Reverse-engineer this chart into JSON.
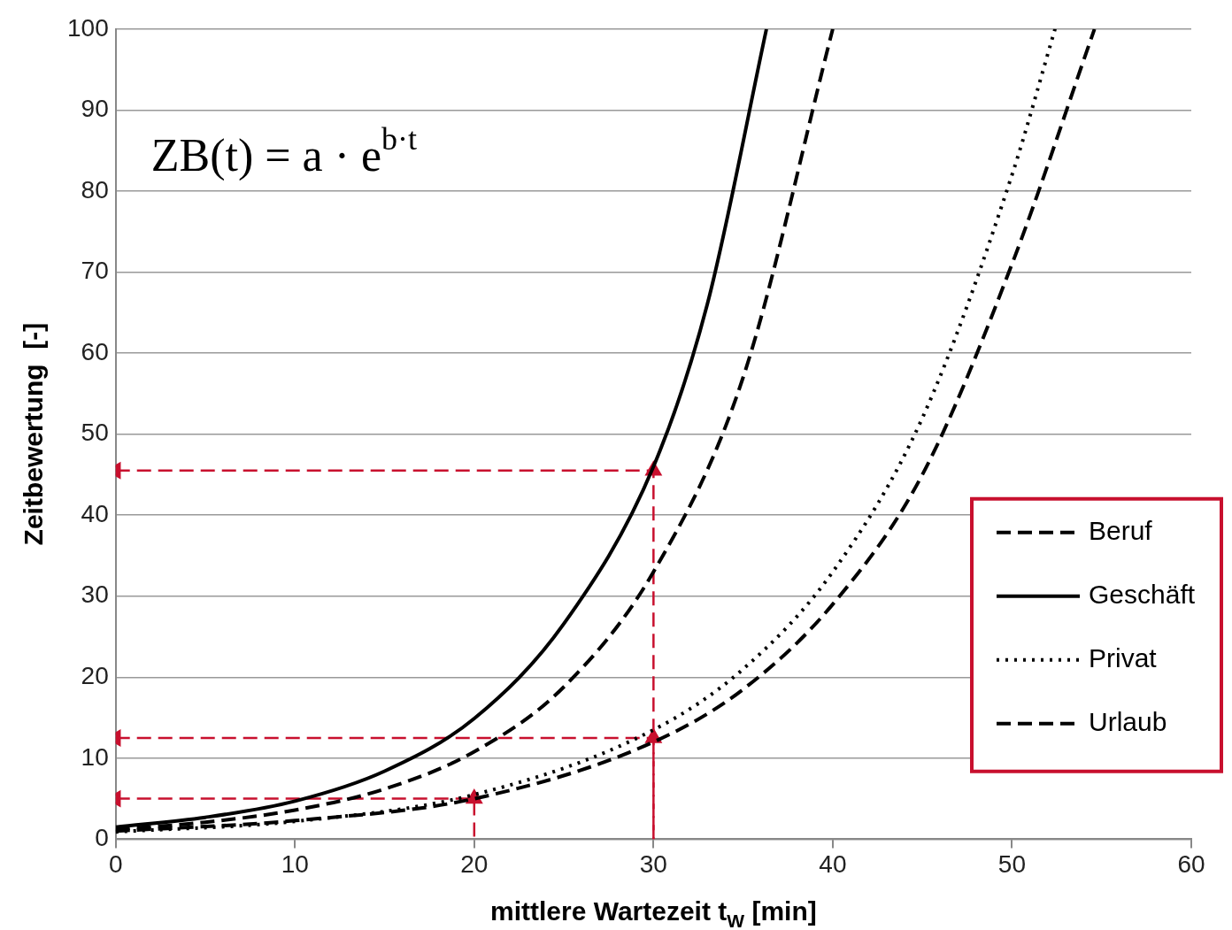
{
  "chart_data": {
    "type": "line",
    "xlabel": "mittlere Wartezeit t$_{W}$ [min]",
    "ylabel": "Zeitbewertung  [-]",
    "annotations": [
      "ZB(t) = a · e$^{b·t}$"
    ],
    "xlim": [
      0,
      60
    ],
    "xticks": [
      0,
      10,
      20,
      30,
      40,
      50,
      60
    ],
    "ylim": [
      0,
      100
    ],
    "yticks": [
      0,
      10,
      20,
      30,
      40,
      50,
      60,
      70,
      80,
      90,
      100
    ],
    "grid": "y",
    "legend": "right",
    "marker": "none",
    "series": [
      {
        "name": "Beruf",
        "color": "#000000",
        "line_style": "dashed",
        "x": [
          0,
          5,
          10,
          15,
          20,
          25,
          30,
          35,
          40
        ],
        "values": [
          1.2,
          2.1,
          3.6,
          6.2,
          10.8,
          18.8,
          33,
          57,
          100
        ]
      },
      {
        "name": "Geschäft",
        "color": "#000000",
        "line_style": "solid",
        "x": [
          0,
          5,
          10,
          15,
          20,
          25,
          30,
          33,
          36.3
        ],
        "values": [
          1.5,
          2.7,
          4.7,
          8.4,
          14.9,
          26.6,
          46,
          66,
          100
        ]
      },
      {
        "name": "Privat",
        "color": "#000000",
        "line_style": "dotted",
        "x": [
          0,
          10,
          20,
          30,
          35,
          40,
          45,
          50,
          52.4
        ],
        "values": [
          0.9,
          2.2,
          5.5,
          13.5,
          21,
          33,
          52,
          82,
          100
        ]
      },
      {
        "name": "Urlaub",
        "color": "#000000",
        "line_style": "dashed",
        "x": [
          0,
          10,
          20,
          30,
          35,
          40,
          45,
          50,
          54.6
        ],
        "values": [
          1,
          2.3,
          5,
          12,
          18.5,
          29,
          45,
          71,
          100
        ]
      },
      {
        "color": "#c8102e",
        "line_style": "dashed",
        "marker": "triangle",
        "x": [
          0,
          30,
          30
        ],
        "values": [
          45.5,
          45.5,
          0
        ]
      },
      {
        "color": "#c8102e",
        "line_style": "dashed",
        "marker": "triangle",
        "x": [
          0,
          30,
          30
        ],
        "values": [
          12.5,
          12.5,
          0
        ]
      },
      {
        "color": "#c8102e",
        "line_style": "dashed",
        "marker": "triangle",
        "x": [
          0,
          20,
          20
        ],
        "values": [
          5,
          5,
          0
        ]
      }
    ]
  }
}
